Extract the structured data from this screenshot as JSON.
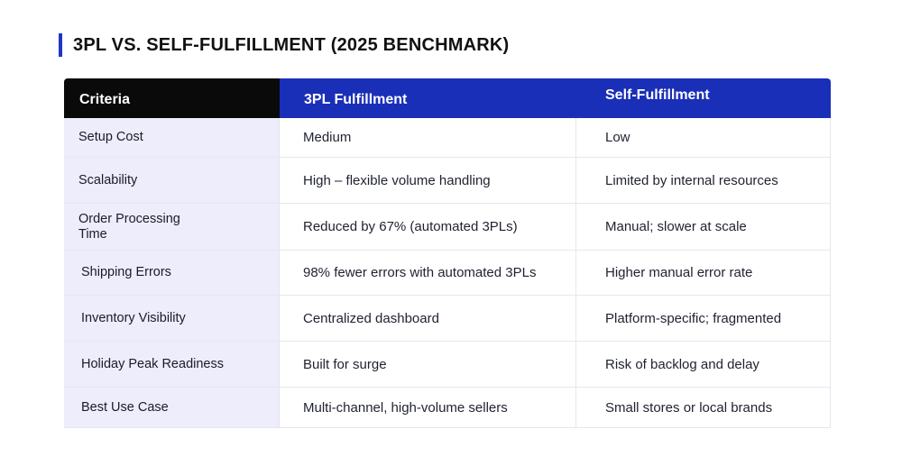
{
  "title": "3PL VS. SELF-FULFILLMENT (2025 BENCHMARK)",
  "table": {
    "headers": [
      "Criteria",
      "3PL Fulfillment",
      "Self-Fulfillment"
    ],
    "rows": [
      {
        "criteria": "Setup Cost",
        "threepl": "Medium",
        "self": "Low"
      },
      {
        "criteria": "Scalability",
        "threepl": "High – flexible volume handling",
        "self": "Limited by internal resources"
      },
      {
        "criteria": "Order Processing Time",
        "threepl": "Reduced by 67% (automated 3PLs)",
        "self": "Manual; slower at scale"
      },
      {
        "criteria": "Shipping Errors",
        "threepl": "98% fewer errors with automated 3PLs",
        "self": "Higher manual error rate"
      },
      {
        "criteria": "Inventory Visibility",
        "threepl": "Centralized dashboard",
        "self": "Platform-specific; fragmented"
      },
      {
        "criteria": "Holiday Peak Readiness",
        "threepl": "Built for surge",
        "self": "Risk of backlog and delay"
      },
      {
        "criteria": "Best Use Case",
        "threepl": "Multi-channel, high-volume sellers",
        "self": "Small stores or local brands"
      }
    ]
  },
  "colors": {
    "accent": "#1a2fb8",
    "header_dark": "#0a0a0a",
    "criteria_bg": "#ededfb"
  }
}
